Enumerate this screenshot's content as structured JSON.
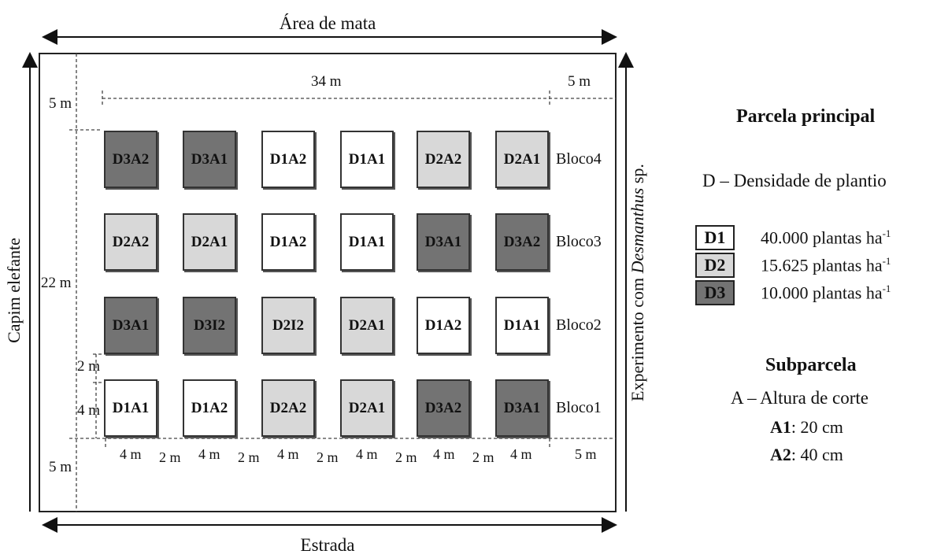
{
  "colors": {
    "D1": "#ffffff",
    "D2": "#d8d8d8",
    "D3": "#737373"
  },
  "top_label": "Área de mata",
  "bottom_label": "Estrada",
  "left_label": "Capim elefante",
  "right_label_prefix": "Experimento com ",
  "right_label_italic": "Desmanthus",
  "right_label_suffix": " sp.",
  "dims": {
    "width_label": "34 m",
    "right_margin_top": "5 m",
    "top_margin": "5 m",
    "height_label": "22 m",
    "gap_label": "2 m",
    "plot_height": "4 m",
    "bottom_margin": "5 m",
    "bottom_labels": [
      "4 m",
      "2 m",
      "4 m",
      "2 m",
      "4 m",
      "2 m",
      "4 m",
      "2 m",
      "4 m",
      "2 m",
      "4 m",
      "5 m"
    ]
  },
  "blocks": [
    {
      "name": "Bloco4",
      "plots": [
        {
          "label": "D3A2",
          "density": "D3"
        },
        {
          "label": "D3A1",
          "density": "D3"
        },
        {
          "label": "D1A2",
          "density": "D1"
        },
        {
          "label": "D1A1",
          "density": "D1"
        },
        {
          "label": "D2A2",
          "density": "D2"
        },
        {
          "label": "D2A1",
          "density": "D2"
        }
      ]
    },
    {
      "name": "Bloco3",
      "plots": [
        {
          "label": "D2A2",
          "density": "D2"
        },
        {
          "label": "D2A1",
          "density": "D2"
        },
        {
          "label": "D1A2",
          "density": "D1"
        },
        {
          "label": "D1A1",
          "density": "D1"
        },
        {
          "label": "D3A1",
          "density": "D3"
        },
        {
          "label": "D3A2",
          "density": "D3"
        }
      ]
    },
    {
      "name": "Bloco2",
      "plots": [
        {
          "label": "D3A1",
          "density": "D3"
        },
        {
          "label": "D3I2",
          "density": "D3"
        },
        {
          "label": "D2I2",
          "density": "D2"
        },
        {
          "label": "D2A1",
          "density": "D2"
        },
        {
          "label": "D1A2",
          "density": "D1"
        },
        {
          "label": "D1A1",
          "density": "D1"
        }
      ]
    },
    {
      "name": "Bloco1",
      "plots": [
        {
          "label": "D1A1",
          "density": "D1"
        },
        {
          "label": "D1A2",
          "density": "D1"
        },
        {
          "label": "D2A2",
          "density": "D2"
        },
        {
          "label": "D2A1",
          "density": "D2"
        },
        {
          "label": "D3A2",
          "density": "D3"
        },
        {
          "label": "D3A1",
          "density": "D3"
        }
      ]
    }
  ],
  "legend": {
    "title": "Parcela principal",
    "density_desc": "D – Densidade de plantio",
    "items": [
      {
        "code": "D1",
        "text": "40.000 plantas ha",
        "sup": "-1"
      },
      {
        "code": "D2",
        "text": "15.625 plantas ha",
        "sup": "-1"
      },
      {
        "code": "D3",
        "text": "10.000 plantas ha",
        "sup": "-1"
      }
    ],
    "sub_title": "Subparcela",
    "sub_desc": "A – Altura de corte",
    "sub_items": [
      {
        "code": "A1",
        "text": ": 20 cm"
      },
      {
        "code": "A2",
        "text": ": 40 cm"
      }
    ]
  }
}
